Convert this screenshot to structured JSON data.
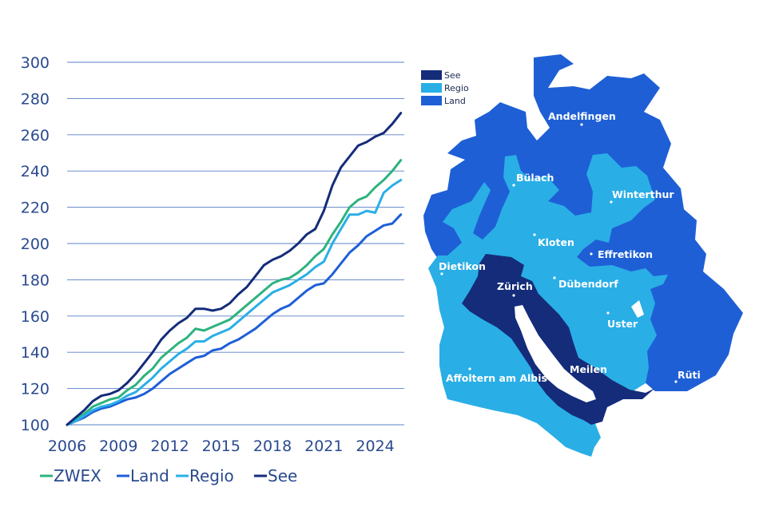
{
  "chart_data": {
    "type": "line",
    "title": "",
    "xlabel": "",
    "ylabel": "",
    "xlim": [
      2006,
      2025.7
    ],
    "ylim": [
      100,
      300
    ],
    "y_ticks": [
      100,
      120,
      140,
      160,
      180,
      200,
      220,
      240,
      260,
      280,
      300
    ],
    "x_ticks": [
      2006,
      2009,
      2012,
      2015,
      2018,
      2021,
      2024
    ],
    "y_tick_labels": [
      "100",
      "120",
      "140",
      "160",
      "180",
      "200",
      "220",
      "240",
      "260",
      "280",
      "300"
    ],
    "x_tick_labels": [
      "2006",
      "2009",
      "2012",
      "2015",
      "2018",
      "2021",
      "2024"
    ],
    "grid": "horizontal",
    "legend_position": "bottom",
    "series": [
      {
        "name": "ZWEX",
        "color": "#2db37e",
        "x": [
          2006,
          2006.5,
          2007,
          2007.5,
          2008,
          2008.5,
          2009,
          2009.5,
          2010,
          2010.5,
          2011,
          2011.5,
          2012,
          2012.5,
          2013,
          2013.5,
          2014,
          2014.5,
          2015,
          2015.5,
          2016,
          2016.5,
          2017,
          2017.5,
          2018,
          2018.5,
          2019,
          2019.5,
          2020,
          2020.5,
          2021,
          2021.5,
          2022,
          2022.5,
          2023,
          2023.5,
          2024,
          2024.5,
          2025,
          2025.5
        ],
        "values": [
          100,
          103,
          106,
          110,
          112,
          114,
          115,
          119,
          122,
          127,
          131,
          137,
          141,
          145,
          148,
          153,
          152,
          154,
          156,
          158,
          162,
          166,
          170,
          174,
          178,
          180,
          181,
          184,
          188,
          193,
          197,
          205,
          212,
          220,
          224,
          226,
          231,
          235,
          240,
          246
        ]
      },
      {
        "name": "Land",
        "color": "#1e5fd6",
        "x": [
          2006,
          2006.5,
          2007,
          2007.5,
          2008,
          2008.5,
          2009,
          2009.5,
          2010,
          2010.5,
          2011,
          2011.5,
          2012,
          2012.5,
          2013,
          2013.5,
          2014,
          2014.5,
          2015,
          2015.5,
          2016,
          2016.5,
          2017,
          2017.5,
          2018,
          2018.5,
          2019,
          2019.5,
          2020,
          2020.5,
          2021,
          2021.5,
          2022,
          2022.5,
          2023,
          2023.5,
          2024,
          2024.5,
          2025,
          2025.5
        ],
        "values": [
          100,
          102,
          104,
          107,
          109,
          110,
          112,
          114,
          115,
          117,
          120,
          124,
          128,
          131,
          134,
          137,
          138,
          141,
          142,
          145,
          147,
          150,
          153,
          157,
          161,
          164,
          166,
          170,
          174,
          177,
          178,
          183,
          189,
          195,
          199,
          204,
          207,
          210,
          211,
          216
        ]
      },
      {
        "name": "Regio",
        "color": "#2aaee6",
        "x": [
          2006,
          2006.5,
          2007,
          2007.5,
          2008,
          2008.5,
          2009,
          2009.5,
          2010,
          2010.5,
          2011,
          2011.5,
          2012,
          2012.5,
          2013,
          2013.5,
          2014,
          2014.5,
          2015,
          2015.5,
          2016,
          2016.5,
          2017,
          2017.5,
          2018,
          2018.5,
          2019,
          2019.5,
          2020,
          2020.5,
          2021,
          2021.5,
          2022,
          2022.5,
          2023,
          2023.5,
          2024,
          2024.5,
          2025,
          2025.5
        ],
        "values": [
          100,
          102,
          105,
          108,
          110,
          111,
          113,
          116,
          118,
          122,
          126,
          131,
          135,
          139,
          142,
          146,
          146,
          149,
          151,
          153,
          157,
          161,
          165,
          169,
          173,
          175,
          177,
          180,
          183,
          187,
          190,
          200,
          208,
          216,
          216,
          218,
          217,
          228,
          232,
          235
        ]
      },
      {
        "name": "See",
        "color": "#142c7a",
        "x": [
          2006,
          2006.5,
          2007,
          2007.5,
          2008,
          2008.5,
          2009,
          2009.5,
          2010,
          2010.5,
          2011,
          2011.5,
          2012,
          2012.5,
          2013,
          2013.5,
          2014,
          2014.5,
          2015,
          2015.5,
          2016,
          2016.5,
          2017,
          2017.5,
          2018,
          2018.5,
          2019,
          2019.5,
          2020,
          2020.5,
          2021,
          2021.5,
          2022,
          2022.5,
          2023,
          2023.5,
          2024,
          2024.5,
          2025,
          2025.5
        ],
        "values": [
          100,
          104,
          108,
          113,
          116,
          117,
          119,
          123,
          128,
          134,
          140,
          147,
          152,
          156,
          159,
          164,
          164,
          163,
          164,
          167,
          172,
          176,
          182,
          188,
          191,
          193,
          196,
          200,
          205,
          208,
          218,
          232,
          242,
          248,
          254,
          256,
          259,
          261,
          266,
          272
        ]
      }
    ]
  },
  "map": {
    "legend": [
      {
        "label": "See",
        "color": "#142c7a"
      },
      {
        "label": "Regio",
        "color": "#2aaee6"
      },
      {
        "label": "Land",
        "color": "#1e5fd6"
      }
    ],
    "cities": [
      {
        "name": "Andelfingen",
        "region": "Land"
      },
      {
        "name": "Bülach",
        "region": "Regio"
      },
      {
        "name": "Winterthur",
        "region": "Regio"
      },
      {
        "name": "Kloten",
        "region": "Regio"
      },
      {
        "name": "Effretikon",
        "region": "Land"
      },
      {
        "name": "Dietikon",
        "region": "Regio"
      },
      {
        "name": "Zürich",
        "region": "See"
      },
      {
        "name": "Dübendorf",
        "region": "Regio"
      },
      {
        "name": "Uster",
        "region": "Regio"
      },
      {
        "name": "Affoltern am Albis",
        "region": "Regio"
      },
      {
        "name": "Meilen",
        "region": "See"
      },
      {
        "name": "Rüti",
        "region": "Land"
      }
    ]
  }
}
